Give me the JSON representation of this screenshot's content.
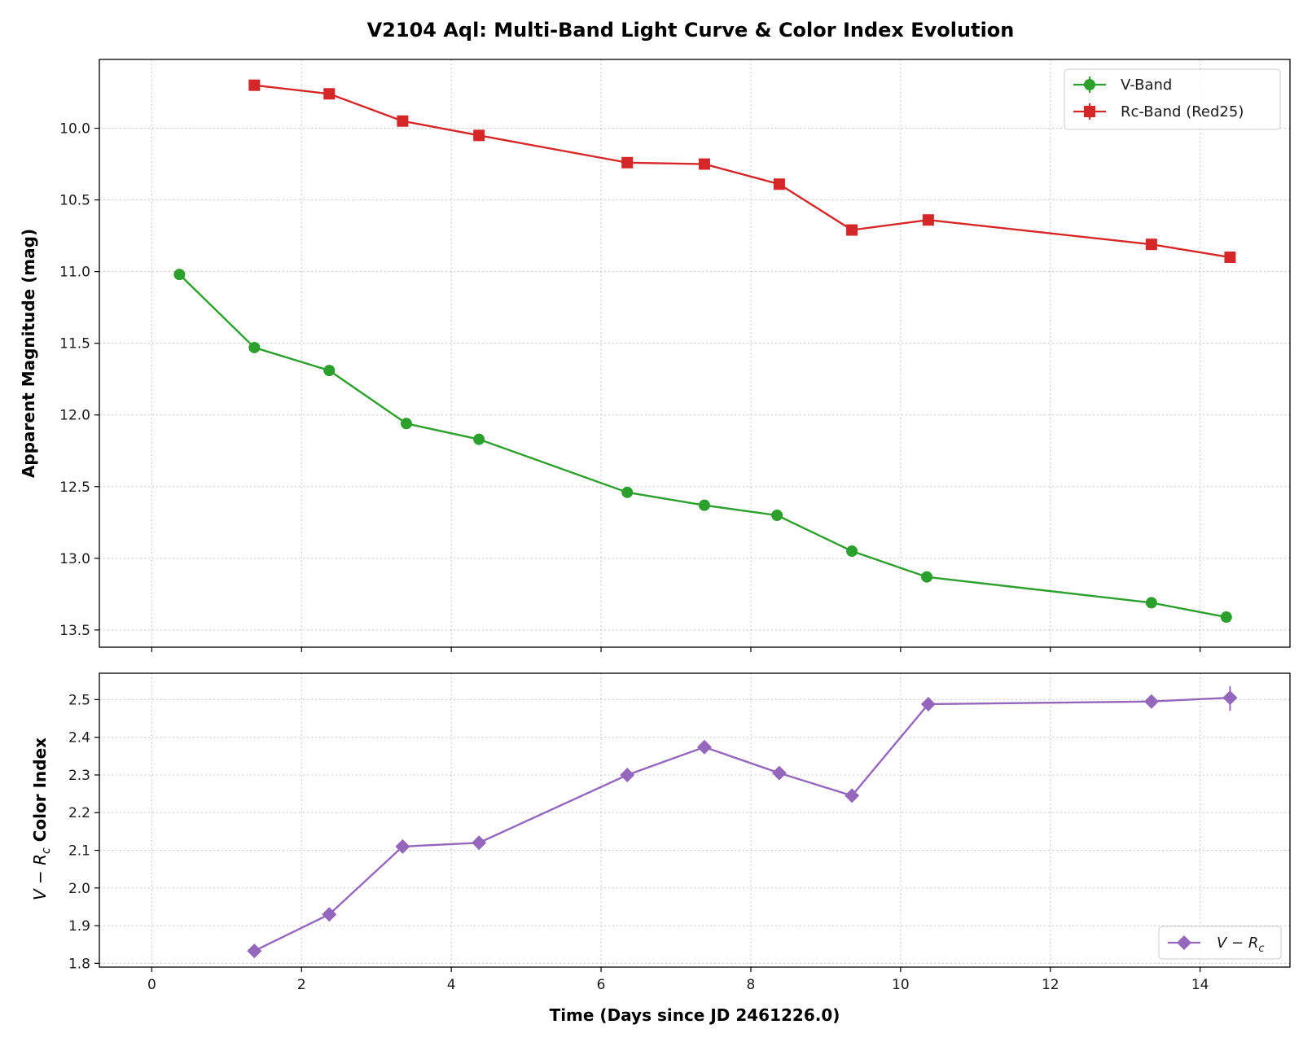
{
  "chart_data": {
    "type": "line",
    "title": "V2104 Aql: Multi-Band Light Curve & Color Index Evolution",
    "xlabel": "Time (Days since JD 2461226.0)",
    "xlim": [
      -0.7,
      15.2
    ],
    "xticks": [
      0,
      2,
      4,
      6,
      8,
      10,
      12,
      14
    ],
    "grid": true,
    "panels": [
      {
        "id": "top",
        "ylabel": "Apparent Magnitude (mag)",
        "ylim": [
          13.62,
          9.52
        ],
        "y_inverted": true,
        "yticks": [
          "10.0",
          "10.5",
          "11.0",
          "11.5",
          "12.0",
          "12.5",
          "13.0",
          "13.5"
        ],
        "legend_position": "upper right",
        "series": [
          {
            "name": "V-Band",
            "color": "#2ca02c",
            "marker": "circle",
            "x": [
              0.37,
              1.37,
              2.37,
              3.4,
              4.37,
              6.35,
              7.38,
              8.35,
              9.35,
              10.35,
              13.35,
              14.35
            ],
            "y": [
              11.02,
              11.53,
              11.69,
              12.06,
              12.17,
              12.54,
              12.63,
              12.7,
              12.95,
              13.13,
              13.31,
              13.41
            ]
          },
          {
            "name": "Rc-Band (Red25)",
            "color": "#d62728",
            "marker": "square",
            "x": [
              1.37,
              2.37,
              3.35,
              4.37,
              6.35,
              7.38,
              8.38,
              9.35,
              10.37,
              13.35,
              14.4
            ],
            "y": [
              9.7,
              9.76,
              9.95,
              10.05,
              10.24,
              10.25,
              10.39,
              10.71,
              10.64,
              10.81,
              10.9
            ]
          }
        ]
      },
      {
        "id": "bottom",
        "ylabel": "V − R_c Color Index",
        "ylim": [
          1.79,
          2.57
        ],
        "yticks": [
          "1.8",
          "1.9",
          "2.0",
          "2.1",
          "2.2",
          "2.3",
          "2.4",
          "2.5"
        ],
        "legend_position": "lower right",
        "series": [
          {
            "name": "V − R_c",
            "color": "#9467bd",
            "marker": "diamond",
            "x": [
              1.37,
              2.37,
              3.35,
              4.37,
              6.35,
              7.38,
              8.38,
              9.35,
              10.37,
              13.35,
              14.4
            ],
            "y": [
              1.833,
              1.93,
              2.11,
              2.12,
              2.3,
              2.374,
              2.305,
              2.245,
              2.488,
              2.495,
              2.505
            ]
          }
        ]
      }
    ]
  }
}
